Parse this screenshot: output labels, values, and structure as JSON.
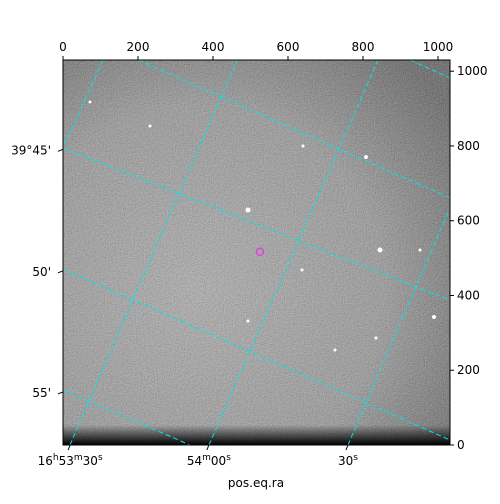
{
  "chart_data": {
    "type": "image",
    "xlabel": "pos.eq.ra",
    "x2lim": [
      0,
      1032
    ],
    "x2ticks": [
      0,
      200,
      400,
      600,
      800,
      1000
    ],
    "y2lim": [
      0,
      1030
    ],
    "y2ticks": [
      0,
      200,
      400,
      600,
      800,
      1000
    ],
    "ra_ticks": [
      {
        "value": 19,
        "label": "16h53m30s"
      },
      {
        "value": 389,
        "label": "54m00s"
      },
      {
        "value": 760,
        "label": "30s"
      }
    ],
    "dec_ticks": [
      {
        "value": 791,
        "label": "39°45'"
      },
      {
        "value": 466,
        "label": "50'"
      },
      {
        "value": 142,
        "label": "55'"
      }
    ],
    "marker": {
      "x": 525,
      "y": 517,
      "color": "#e040e0"
    },
    "grid_color": "#00e5e5"
  }
}
